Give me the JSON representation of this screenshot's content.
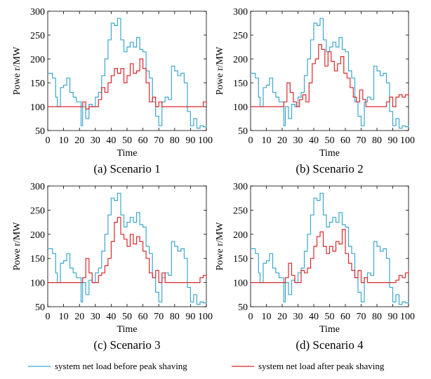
{
  "colors": {
    "before": "#3aa8cc",
    "after": "#d9282b",
    "axis": "#000000"
  },
  "legend": {
    "before": "system net load before peak shaving",
    "after": "system net load after peak shaving"
  },
  "chart_data": [
    {
      "type": "line",
      "caption": "(a) Scenario 1",
      "xlabel": "Time",
      "ylabel": "Powe r/MW",
      "xlim": [
        0,
        100
      ],
      "ylim": [
        50,
        300
      ],
      "xticks": [
        0,
        10,
        20,
        30,
        40,
        50,
        60,
        70,
        80,
        90,
        100
      ],
      "yticks": [
        50,
        100,
        150,
        200,
        250,
        300
      ],
      "series": [
        {
          "name": "system net load before peak shaving",
          "x": [
            0,
            3,
            5,
            6,
            8,
            10,
            12,
            14,
            16,
            18,
            21,
            22,
            24,
            26,
            28,
            30,
            32,
            34,
            36,
            38,
            40,
            42,
            44,
            46,
            48,
            50,
            52,
            54,
            56,
            58,
            60,
            62,
            64,
            66,
            68,
            70,
            72,
            74,
            76,
            78,
            80,
            82,
            84,
            86,
            88,
            90,
            92,
            94,
            96,
            98,
            100
          ],
          "values": [
            170,
            160,
            120,
            100,
            140,
            145,
            160,
            130,
            120,
            110,
            60,
            100,
            75,
            105,
            100,
            120,
            130,
            165,
            200,
            240,
            275,
            270,
            285,
            240,
            215,
            225,
            235,
            225,
            245,
            220,
            215,
            175,
            160,
            110,
            80,
            60,
            110,
            120,
            115,
            185,
            175,
            165,
            170,
            150,
            90,
            60,
            75,
            55,
            60,
            58,
            60
          ]
        },
        {
          "name": "system net load after peak shaving",
          "x": [
            0,
            20,
            22,
            24,
            26,
            28,
            30,
            32,
            34,
            36,
            38,
            40,
            42,
            44,
            46,
            48,
            50,
            52,
            54,
            56,
            58,
            60,
            62,
            64,
            66,
            68,
            70,
            72,
            96,
            98,
            100
          ],
          "values": [
            100,
            100,
            110,
            95,
            100,
            100,
            100,
            115,
            140,
            130,
            150,
            165,
            180,
            170,
            180,
            150,
            165,
            190,
            170,
            175,
            200,
            180,
            150,
            110,
            120,
            100,
            110,
            100,
            100,
            110,
            105
          ]
        }
      ]
    },
    {
      "type": "line",
      "caption": "(b) Scenario 2",
      "xlabel": "Time",
      "ylabel": "Powe r/MW",
      "xlim": [
        0,
        100
      ],
      "ylim": [
        50,
        300
      ],
      "xticks": [
        0,
        10,
        20,
        30,
        40,
        50,
        60,
        70,
        80,
        90,
        100
      ],
      "yticks": [
        50,
        100,
        150,
        200,
        250,
        300
      ],
      "series": [
        {
          "name": "system net load before peak shaving",
          "x": [
            0,
            3,
            5,
            6,
            8,
            10,
            12,
            14,
            16,
            18,
            21,
            22,
            24,
            26,
            28,
            30,
            32,
            34,
            36,
            38,
            40,
            42,
            44,
            46,
            48,
            50,
            52,
            54,
            56,
            58,
            60,
            62,
            64,
            66,
            68,
            70,
            72,
            74,
            76,
            78,
            80,
            82,
            84,
            86,
            88,
            90,
            92,
            94,
            96,
            98,
            100
          ],
          "values": [
            170,
            160,
            120,
            100,
            140,
            145,
            160,
            130,
            120,
            110,
            60,
            100,
            75,
            105,
            100,
            120,
            130,
            165,
            200,
            240,
            275,
            270,
            285,
            240,
            215,
            225,
            235,
            225,
            245,
            220,
            215,
            175,
            160,
            110,
            80,
            60,
            110,
            120,
            115,
            185,
            175,
            165,
            170,
            150,
            90,
            60,
            75,
            55,
            60,
            58,
            60
          ]
        },
        {
          "name": "system net load after peak shaving",
          "x": [
            0,
            20,
            21,
            23,
            25,
            27,
            29,
            31,
            33,
            35,
            37,
            39,
            41,
            43,
            45,
            47,
            49,
            51,
            53,
            55,
            57,
            59,
            61,
            63,
            65,
            67,
            69,
            71,
            73,
            75,
            84,
            86,
            88,
            90,
            92,
            94,
            96,
            98,
            100
          ],
          "values": [
            100,
            100,
            110,
            150,
            130,
            110,
            100,
            115,
            125,
            110,
            150,
            190,
            200,
            230,
            220,
            185,
            215,
            195,
            175,
            190,
            205,
            170,
            160,
            140,
            120,
            110,
            135,
            115,
            100,
            100,
            100,
            110,
            120,
            100,
            120,
            125,
            120,
            125,
            130
          ]
        }
      ]
    },
    {
      "type": "line",
      "caption": "(c) Scenario 3",
      "xlabel": "Time",
      "ylabel": "Powe r/MW",
      "xlim": [
        0,
        100
      ],
      "ylim": [
        50,
        300
      ],
      "xticks": [
        0,
        10,
        20,
        30,
        40,
        50,
        60,
        70,
        80,
        90,
        100
      ],
      "yticks": [
        50,
        100,
        150,
        200,
        250,
        300
      ],
      "series": [
        {
          "name": "system net load before peak shaving",
          "x": [
            0,
            3,
            5,
            6,
            8,
            10,
            12,
            14,
            16,
            18,
            21,
            22,
            24,
            26,
            28,
            30,
            32,
            34,
            36,
            38,
            40,
            42,
            44,
            46,
            48,
            50,
            52,
            54,
            56,
            58,
            60,
            62,
            64,
            66,
            68,
            70,
            72,
            74,
            76,
            78,
            80,
            82,
            84,
            86,
            88,
            90,
            92,
            94,
            96,
            98,
            100
          ],
          "values": [
            170,
            160,
            120,
            100,
            140,
            145,
            160,
            130,
            120,
            110,
            60,
            100,
            75,
            105,
            100,
            120,
            130,
            165,
            200,
            240,
            275,
            270,
            285,
            240,
            215,
            225,
            235,
            225,
            245,
            220,
            215,
            175,
            160,
            110,
            80,
            60,
            110,
            120,
            115,
            185,
            175,
            165,
            170,
            150,
            90,
            60,
            75,
            55,
            60,
            58,
            60
          ]
        },
        {
          "name": "system net load after peak shaving",
          "x": [
            0,
            20,
            22,
            24,
            26,
            28,
            30,
            32,
            34,
            36,
            38,
            40,
            42,
            44,
            46,
            48,
            50,
            52,
            54,
            56,
            58,
            60,
            62,
            64,
            66,
            68,
            70,
            72,
            74,
            80,
            88,
            90,
            92,
            94,
            96,
            98,
            100
          ],
          "values": [
            100,
            100,
            110,
            150,
            120,
            100,
            100,
            115,
            120,
            135,
            150,
            185,
            225,
            235,
            200,
            190,
            175,
            200,
            180,
            195,
            185,
            165,
            150,
            120,
            110,
            125,
            100,
            120,
            100,
            100,
            100,
            100,
            100,
            100,
            110,
            115,
            110
          ]
        }
      ]
    },
    {
      "type": "line",
      "caption": "(d) Scenario 4",
      "xlabel": "Time",
      "ylabel": "Powe r/MW",
      "xlim": [
        0,
        100
      ],
      "ylim": [
        50,
        300
      ],
      "xticks": [
        0,
        10,
        20,
        30,
        40,
        50,
        60,
        70,
        80,
        90,
        100
      ],
      "yticks": [
        50,
        100,
        150,
        200,
        250,
        300
      ],
      "series": [
        {
          "name": "system net load before peak shaving",
          "x": [
            0,
            3,
            5,
            6,
            8,
            10,
            12,
            14,
            16,
            18,
            21,
            22,
            24,
            26,
            28,
            30,
            32,
            34,
            36,
            38,
            40,
            42,
            44,
            46,
            48,
            50,
            52,
            54,
            56,
            58,
            60,
            62,
            64,
            66,
            68,
            70,
            72,
            74,
            76,
            78,
            80,
            82,
            84,
            86,
            88,
            90,
            92,
            94,
            96,
            98,
            100
          ],
          "values": [
            170,
            160,
            120,
            100,
            140,
            145,
            160,
            130,
            120,
            110,
            60,
            100,
            75,
            105,
            100,
            120,
            130,
            165,
            200,
            240,
            275,
            270,
            285,
            240,
            215,
            225,
            235,
            225,
            245,
            220,
            215,
            175,
            160,
            110,
            80,
            60,
            110,
            120,
            115,
            185,
            175,
            165,
            170,
            150,
            90,
            60,
            75,
            55,
            60,
            58,
            60
          ]
        },
        {
          "name": "system net load after peak shaving",
          "x": [
            0,
            20,
            22,
            24,
            26,
            28,
            30,
            32,
            34,
            36,
            38,
            40,
            42,
            44,
            46,
            48,
            50,
            52,
            54,
            56,
            58,
            60,
            62,
            64,
            66,
            68,
            70,
            72,
            74,
            84,
            88,
            92,
            94,
            96,
            98,
            100
          ],
          "values": [
            100,
            100,
            110,
            140,
            115,
            100,
            100,
            125,
            120,
            130,
            150,
            175,
            195,
            205,
            175,
            160,
            175,
            165,
            185,
            180,
            210,
            160,
            140,
            125,
            110,
            125,
            100,
            110,
            100,
            100,
            100,
            105,
            115,
            110,
            120,
            125
          ]
        }
      ]
    }
  ]
}
